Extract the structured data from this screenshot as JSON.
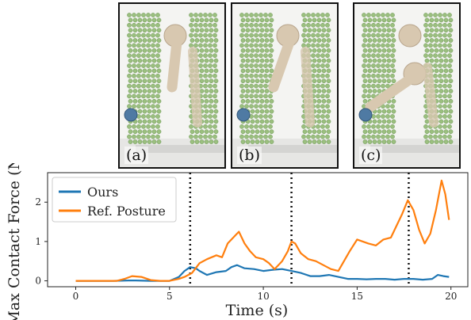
{
  "panels": [
    {
      "label": "(a)",
      "arm_pose": "down"
    },
    {
      "label": "(b)",
      "arm_pose": "mid"
    },
    {
      "label": "(c)",
      "arm_pose": "reach"
    }
  ],
  "chart_data": {
    "type": "line",
    "xlabel": "Time (s)",
    "ylabel": "Max Contact Force (N)",
    "xlim": [
      -1.5,
      20.9
    ],
    "ylim": [
      -0.15,
      2.75
    ],
    "xticks": [
      0,
      5,
      10,
      15,
      20
    ],
    "yticks": [
      0,
      1,
      2
    ],
    "grid": false,
    "legend_position": "top-left",
    "vlines": [
      6.1,
      11.5,
      17.75
    ],
    "series": [
      {
        "name": "Ours",
        "color": "#1f77b4",
        "x": [
          0,
          2,
          2.8,
          3.2,
          4,
          5,
          5.5,
          5.8,
          6.1,
          6.4,
          6.6,
          7,
          7.5,
          8,
          8.3,
          8.6,
          9,
          9.5,
          10,
          10.5,
          11,
          11.5,
          12,
          12.5,
          13,
          13.5,
          14,
          14.5,
          15,
          15.5,
          16,
          16.5,
          17,
          17.5,
          18,
          18.5,
          19,
          19.3,
          19.6,
          19.9
        ],
        "values": [
          0,
          0,
          0.01,
          0.01,
          0,
          0,
          0.1,
          0.25,
          0.35,
          0.32,
          0.25,
          0.15,
          0.22,
          0.25,
          0.35,
          0.4,
          0.32,
          0.3,
          0.25,
          0.28,
          0.3,
          0.25,
          0.2,
          0.12,
          0.12,
          0.15,
          0.1,
          0.05,
          0.05,
          0.04,
          0.05,
          0.05,
          0.03,
          0.05,
          0.05,
          0.03,
          0.05,
          0.15,
          0.12,
          0.1
        ]
      },
      {
        "name": "Ref. Posture",
        "color": "#ff7f0e",
        "x": [
          0,
          2.2,
          2.6,
          3,
          3.5,
          4,
          4.5,
          5,
          5.5,
          5.8,
          6.2,
          6.6,
          7,
          7.5,
          7.8,
          8.1,
          8.5,
          8.7,
          9,
          9.3,
          9.6,
          10,
          10.3,
          10.6,
          11,
          11.3,
          11.5,
          11.7,
          12,
          12.4,
          12.8,
          13.2,
          13.6,
          14,
          14.3,
          14.6,
          15,
          15.3,
          15.6,
          16,
          16.4,
          16.8,
          17.1,
          17.4,
          17.7,
          18,
          18.3,
          18.6,
          18.9,
          19.2,
          19.5,
          19.7,
          19.9
        ],
        "values": [
          0,
          0,
          0.05,
          0.12,
          0.1,
          0.02,
          0,
          0,
          0.05,
          0.1,
          0.2,
          0.45,
          0.55,
          0.65,
          0.6,
          0.95,
          1.15,
          1.25,
          0.95,
          0.75,
          0.6,
          0.55,
          0.45,
          0.3,
          0.5,
          0.75,
          1.0,
          0.95,
          0.7,
          0.55,
          0.5,
          0.4,
          0.3,
          0.25,
          0.5,
          0.75,
          1.05,
          1.0,
          0.95,
          0.9,
          1.05,
          1.1,
          1.4,
          1.7,
          2.05,
          1.8,
          1.3,
          0.95,
          1.2,
          1.8,
          2.55,
          2.2,
          1.55
        ]
      }
    ]
  }
}
